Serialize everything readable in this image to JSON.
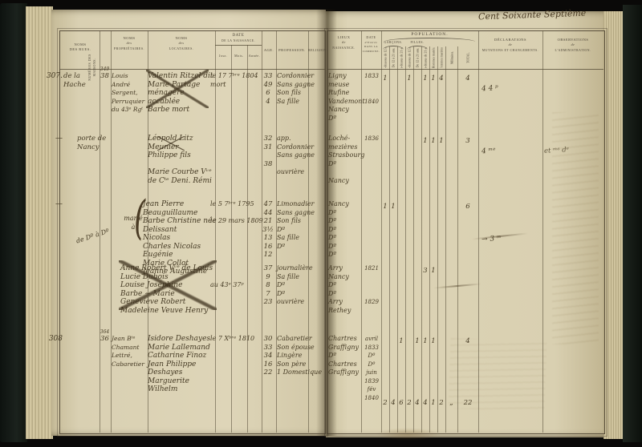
{
  "folio_note": "Cent Soixante Septième",
  "left_table": {
    "headers": {
      "rues_1": "NOMS",
      "rues_2": "DES RUES.",
      "maisons": "NUMÉROS DES MAISONS.",
      "prop_1": "NOMS",
      "prop_2": "des",
      "prop_3": "PROPRIÉTAIRES.",
      "loc_1": "NOMS",
      "loc_2": "des",
      "loc_3": "LOCATAIRES.",
      "date_1": "DATE",
      "date_2": "DE LA NAISSANCE.",
      "jour": "Jour.",
      "mois": "Mois.",
      "annee": "Année.",
      "age": "AGE.",
      "profession": "PROFESSION.",
      "religion": "RELIGION."
    }
  },
  "right_table": {
    "headers": {
      "lieux_1": "LIEUX",
      "lieux_2": "de",
      "lieux_3": "NAISSANCE.",
      "entree_1": "DATE",
      "entree_2": "d'Entrée",
      "entree_3": "DANS LA COMMUNE.",
      "population": "POPULATION.",
      "garcons": "GARÇONS.",
      "filles": "FILLES.",
      "subcols": [
        "Au-dessous de 12 ans.",
        "De 12 à 21 ans.",
        "Au-dessus de 21 ans.",
        "Au-dessous de 12 ans.",
        "De 12 à 21 ans.",
        "Au-dessus de 21 ans.",
        "Hommes mariés.",
        "Femmes mariées.",
        "Militaires.",
        "TOTAL."
      ],
      "decl_1": "DÉCLARATIONS",
      "decl_2": "de",
      "decl_3": "MUTATIONS ET CHANGEMENTS.",
      "obs_1": "OBSERVATIONS",
      "obs_2": "de",
      "obs_3": "L'ADMINISTRATION."
    },
    "totals": [
      "2",
      "4",
      "6",
      "2",
      "4",
      "4",
      "1",
      "2",
      "„",
      "22"
    ]
  },
  "blocks": [
    {
      "num": "307.",
      "rue": "de la Hache",
      "maison_top": "349",
      "maison": "38",
      "proprietaires": [
        "Louis André",
        "Sergent, Perruquier",
        "du 43ᵉ Rgᵗ"
      ],
      "locataires": [
        "Valentin Ritzel   dit",
        "Marie Partage  ménagère",
        "accablée",
        "Barbe    mort"
      ],
      "date": [
        "le 17 7ᵇʳᵉ 1804",
        "mort"
      ],
      "ages": [
        "33",
        "49",
        "6",
        "4"
      ],
      "professions": [
        "Cordonnier",
        "Sans gagne",
        "Son fils",
        "Sa fille"
      ],
      "lieux": [
        "Ligny meuse",
        "Rufine",
        "Vandemont",
        "Nancy",
        "Dº"
      ],
      "entree": [
        "1833",
        "",
        "",
        "1840"
      ],
      "pop": [
        "1",
        "",
        "",
        "1",
        "",
        "1",
        "1",
        "4",
        "",
        "4"
      ],
      "decl_note": "4  4 ᵖ",
      "obs_note": ""
    },
    {
      "num": "—",
      "rue": "porte de Nancy",
      "maison_top": "",
      "maison": "",
      "proprietaires": [],
      "locataires": [
        "Léopold Litz   Meunier",
        "Philippe   fils",
        "",
        "Marie Courbe Vᵛᵉ de Cᵗᵉ Deni. Rémi"
      ],
      "date": [],
      "ages": [
        "32",
        "31",
        "",
        "38"
      ],
      "professions": [
        "app. Cordonnier",
        "Sans gagne",
        "",
        "ouvrière"
      ],
      "lieux": [
        "Loché-mezières",
        "Strasbourg    Dº",
        "",
        "Nancy"
      ],
      "entree": [
        "1836"
      ],
      "pop": [
        "",
        "",
        "",
        "",
        "",
        "1",
        "1",
        "1",
        "",
        "3"
      ],
      "decl_note": "4 ᵐᵉ",
      "obs_note": "et ᵐᵃ dᵉ"
    },
    {
      "num": "—",
      "rue": "",
      "maison_top": "",
      "maison": "",
      "note_marie": "marié\nà",
      "note_ditto": "de Dº à Dº",
      "brace": "(",
      "proprietaires": [],
      "locataires": [
        "Jean Pierre Beauguillaume",
        "Barbe Christine née Delissant",
        "Nicolas",
        "Charles Nicolas",
        "Eugénie",
        "Marie Collot",
        "Jeanne Augustine"
      ],
      "date": [
        "le 5 7ᵇʳᵉ 1795",
        "",
        "le 29 mars 1809"
      ],
      "ages": [
        "47",
        "44",
        "21",
        "3½",
        "13",
        "16",
        "12"
      ],
      "professions": [
        "Limonadier",
        "Sans gagne",
        "Son fils",
        "Dº",
        "Sa fille",
        "Dº"
      ],
      "lieux": [
        "Nancy",
        "Dº",
        "Dº",
        "Dº",
        "Dº",
        "Dº",
        "Dº"
      ],
      "entree": [],
      "pop": [
        "1",
        "1",
        "",
        "",
        "",
        "",
        "",
        "",
        "",
        "6"
      ],
      "decl_note": "→ 3 ᵐ",
      "obs_note": ""
    },
    {
      "num": "",
      "rue": "",
      "maison_top": "",
      "maison": "",
      "proprietaires": [],
      "locataires": [
        "Anne Robert Vᵛᵉ de Louis",
        "Lucie Dubois",
        "Louise Joséphine",
        "Barbe  ~  Marie",
        "Geneviève Robert",
        "Madeleine Veuve Henry"
      ],
      "date": [
        "",
        "",
        "au 43ᵉ 37ᵖ"
      ],
      "ages": [
        "37",
        "9",
        "8",
        "7",
        "23"
      ],
      "professions": [
        "journalière",
        "Sa fille",
        "Dº",
        "Dº",
        "ouvrière"
      ],
      "lieux": [
        "Arry",
        "Nancy",
        "Dº",
        "Dº",
        "Arry",
        "Rethey"
      ],
      "entree": [
        "1821",
        "",
        "",
        "",
        "1829"
      ],
      "pop": [
        "",
        "",
        "",
        "",
        "",
        "3",
        "1",
        "",
        "",
        ""
      ],
      "decl_note": "",
      "obs_note": ""
    },
    {
      "num": "308",
      "rue": "",
      "maison_top": "364",
      "maison": "36",
      "proprietaires": [
        "Jean Bᵗᵉ Chamant",
        "Lettré, Cabaretier"
      ],
      "locataires": [
        "Isidore Deshayes",
        "Marie Lallemand",
        "Catharine Finoz",
        "Jean Philippe Deshayes",
        "Marguerite Wilhelm"
      ],
      "date": [
        "le 7   Xᵇʳᵉ   1810"
      ],
      "ages": [
        "30",
        "33",
        "34",
        "16",
        "22"
      ],
      "professions": [
        "Cabaretier",
        "Son épouse",
        "Lingère",
        "Son père",
        "1 Domestique"
      ],
      "lieux": [
        "Chartres",
        "Graffigny",
        "Dº",
        "Chartres",
        "Graffigny"
      ],
      "entree": [
        "avril 1833",
        "Dº",
        "Dº",
        "juin 1839",
        "fév 1840"
      ],
      "pop": [
        "",
        "",
        "1",
        "",
        "1",
        "1",
        "1",
        "",
        "",
        "4"
      ],
      "decl_note": "",
      "obs_note": ""
    }
  ]
}
